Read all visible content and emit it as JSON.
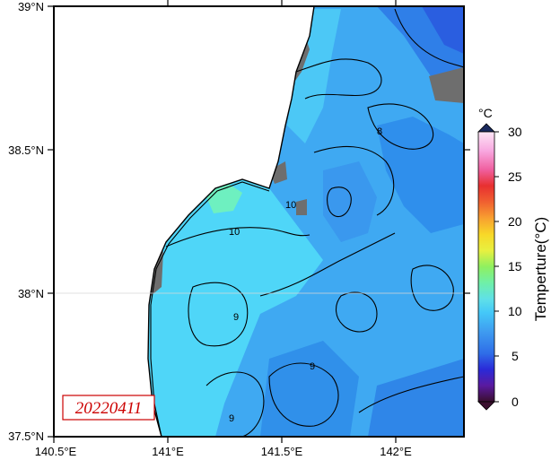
{
  "map": {
    "lat_labels": [
      "39°N",
      "38.5°N",
      "38°N",
      "37.5°N"
    ],
    "lon_labels": [
      "140.5°E",
      "141°E",
      "141.5°E",
      "142°E"
    ],
    "date_stamp": "20220411",
    "contour_labels": [
      "10",
      "10",
      "9",
      "9",
      "8",
      "9"
    ]
  },
  "colorbar": {
    "unit": "°C",
    "title": "Temperture(°C)",
    "ticks": [
      "0",
      "5",
      "10",
      "15",
      "20",
      "25",
      "30"
    ],
    "colors": {
      "land": "#ffffff",
      "missing": "#6e6e6e",
      "contour": "#000000",
      "date_border": "#cc0000"
    }
  },
  "field": {
    "dominant_sst": "10",
    "range": [
      0,
      30
    ]
  }
}
